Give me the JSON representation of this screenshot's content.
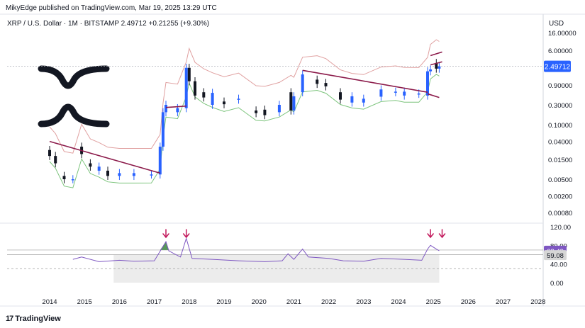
{
  "header": {
    "published": "MikyEdge published on TradingView.com, Mar 19, 2025 13:29 UTC",
    "symbol_line": "XRP / U.S. Dollar · 1M · BITSTAMP  2.49712  +0.21255 (+9.30%)",
    "currency": "USD"
  },
  "footer": {
    "brand": "TradingView",
    "brand_mark": "17"
  },
  "colors": {
    "up_candle": "#2962ff",
    "down_candle": "#131722",
    "upper_band": "#e0a0a0",
    "lower_band": "#7cc47c",
    "trendline": "#8b1a4a",
    "cloud_fill": "#fff3c4",
    "rsi_line": "#7e57c2",
    "rsi_peak_fill": "#2e7d32",
    "price_badge": "#2962ff",
    "rsi_badge": "#7e57c2",
    "arrow": "#c2185b",
    "grid": "#e6e6e6"
  },
  "chart_data": {
    "type": "candlestick",
    "price_scale": "log",
    "y_ticks": [
      "16.00000",
      "6.00000",
      "2.49712",
      "0.90000",
      "0.30000",
      "0.10000",
      "0.04000",
      "0.01500",
      "0.00500",
      "0.00200",
      "0.00080"
    ],
    "y_tick_values": [
      16,
      6,
      2.49712,
      0.9,
      0.3,
      0.1,
      0.04,
      0.015,
      0.005,
      0.002,
      0.0008
    ],
    "x_ticks": [
      "2014",
      "2015",
      "2016",
      "2017",
      "2018",
      "2019",
      "2020",
      "2021",
      "2022",
      "2023",
      "2024",
      "2025",
      "2026",
      "2027",
      "2028"
    ],
    "last_price": "2.49712",
    "price_series": [
      [
        "2014-01",
        0.025,
        0.018
      ],
      [
        "2014-03",
        0.018,
        0.012
      ],
      [
        "2014-06",
        0.006,
        0.005
      ],
      [
        "2014-09",
        0.005,
        0.005
      ],
      [
        "2014-12",
        0.03,
        0.02
      ],
      [
        "2015-03",
        0.012,
        0.01
      ],
      [
        "2015-06",
        0.008,
        0.01
      ],
      [
        "2015-09",
        0.008,
        0.006
      ],
      [
        "2016-01",
        0.006,
        0.007
      ],
      [
        "2016-06",
        0.006,
        0.007
      ],
      [
        "2016-12",
        0.0065,
        0.0065
      ],
      [
        "2017-03",
        0.0065,
        0.03
      ],
      [
        "2017-04",
        0.03,
        0.2
      ],
      [
        "2017-05",
        0.2,
        0.3
      ],
      [
        "2017-09",
        0.2,
        0.25
      ],
      [
        "2017-12",
        0.25,
        2.3
      ],
      [
        "2018-01",
        2.3,
        1.1
      ],
      [
        "2018-03",
        1.1,
        0.5
      ],
      [
        "2018-06",
        0.6,
        0.45
      ],
      [
        "2018-09",
        0.3,
        0.58
      ],
      [
        "2019-01",
        0.36,
        0.31
      ],
      [
        "2019-06",
        0.4,
        0.42
      ],
      [
        "2019-12",
        0.22,
        0.19
      ],
      [
        "2020-03",
        0.23,
        0.17
      ],
      [
        "2020-08",
        0.2,
        0.3
      ],
      [
        "2020-12",
        0.6,
        0.22
      ],
      [
        "2021-01",
        0.22,
        0.48
      ],
      [
        "2021-04",
        0.6,
        1.6
      ],
      [
        "2021-09",
        1.2,
        0.95
      ],
      [
        "2021-12",
        1.0,
        0.83
      ],
      [
        "2022-05",
        0.6,
        0.4
      ],
      [
        "2022-09",
        0.34,
        0.48
      ],
      [
        "2023-01",
        0.34,
        0.42
      ],
      [
        "2023-07",
        0.47,
        0.7
      ],
      [
        "2023-12",
        0.6,
        0.62
      ],
      [
        "2024-03",
        0.5,
        0.62
      ],
      [
        "2024-08",
        0.55,
        0.56
      ],
      [
        "2024-11",
        0.5,
        1.9
      ],
      [
        "2024-12",
        1.9,
        2.1
      ],
      [
        "2025-02",
        3.0,
        2.2
      ],
      [
        "2025-03",
        2.2,
        2.49712
      ]
    ],
    "trendlines": [
      {
        "from": [
          "2014-01",
          0.04
        ],
        "to": [
          "2017-03",
          0.007
        ]
      },
      {
        "from": [
          "2017-05",
          0.26
        ],
        "to": [
          "2017-12",
          0.28
        ]
      },
      {
        "from": [
          "2021-04",
          2.0
        ],
        "to": [
          "2024-11",
          0.6
        ]
      },
      {
        "from": [
          "2024-12",
          4.5
        ],
        "to": [
          "2025-04",
          5.5
        ]
      },
      {
        "from": [
          "2024-12",
          2.7
        ],
        "to": [
          "2025-04",
          3.2
        ]
      },
      {
        "from": [
          "2024-11",
          0.55
        ],
        "to": [
          "2025-03",
          0.45
        ]
      }
    ],
    "rsi": {
      "y_ticks": [
        "120.00",
        "80.00",
        "40.00",
        "0.00"
      ],
      "y_tick_values": [
        120,
        80,
        40,
        0
      ],
      "current_value": "68.49",
      "secondary_value": "59.08",
      "series": [
        [
          "2014-09",
          50
        ],
        [
          "2014-12",
          55
        ],
        [
          "2015-06",
          45
        ],
        [
          "2016-01",
          48
        ],
        [
          "2016-06",
          46
        ],
        [
          "2017-01",
          47
        ],
        [
          "2017-05",
          88
        ],
        [
          "2017-06",
          68
        ],
        [
          "2017-10",
          55
        ],
        [
          "2017-12",
          95
        ],
        [
          "2018-02",
          52
        ],
        [
          "2018-09",
          50
        ],
        [
          "2019-06",
          47
        ],
        [
          "2020-03",
          45
        ],
        [
          "2020-09",
          47
        ],
        [
          "2020-11",
          62
        ],
        [
          "2021-01",
          50
        ],
        [
          "2021-04",
          72
        ],
        [
          "2021-06",
          55
        ],
        [
          "2022-01",
          52
        ],
        [
          "2022-06",
          47
        ],
        [
          "2023-01",
          46
        ],
        [
          "2023-07",
          52
        ],
        [
          "2024-03",
          50
        ],
        [
          "2024-09",
          48
        ],
        [
          "2024-11",
          72
        ],
        [
          "2024-12",
          80
        ],
        [
          "2025-02",
          72
        ],
        [
          "2025-03",
          68.49
        ]
      ]
    },
    "rsi_signals": [
      "2017-05",
      "2017-12",
      "2024-12",
      "2025-04"
    ]
  }
}
